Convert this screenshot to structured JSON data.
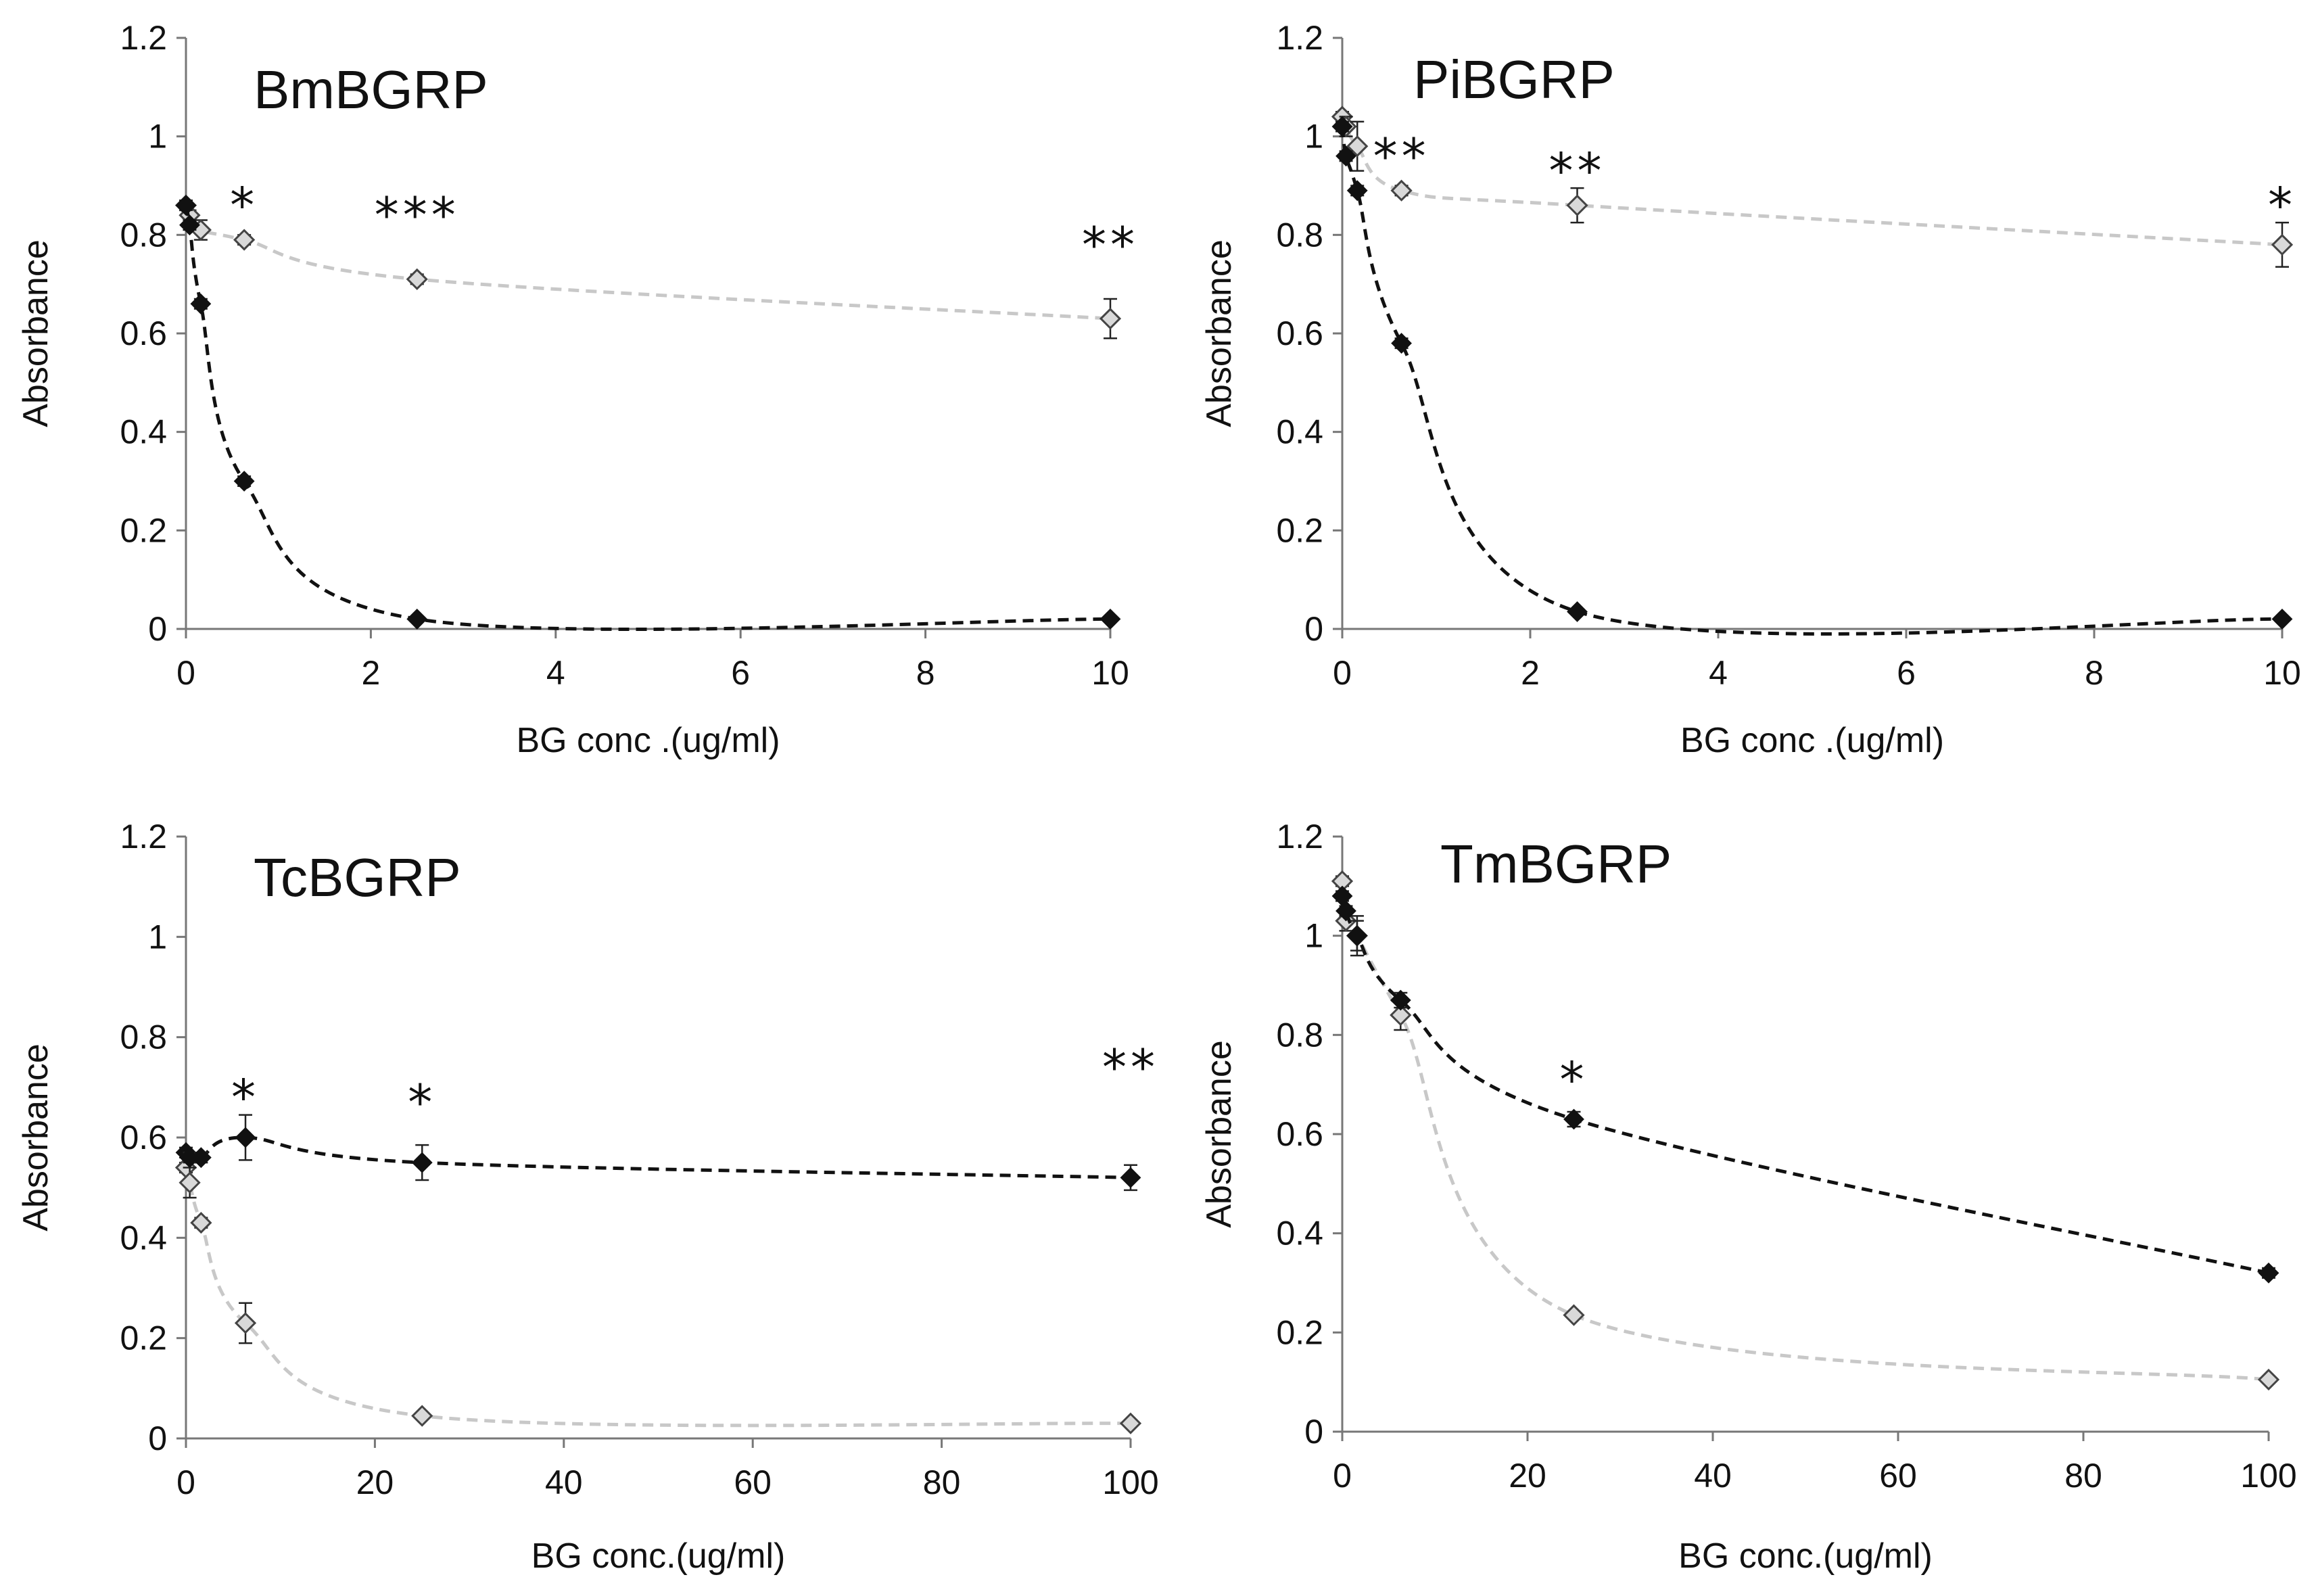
{
  "chart_data": [
    {
      "type": "line",
      "title": "BmBGRP",
      "xlabel": "BG conc .(ug/ml)",
      "ylabel": "Absorbance",
      "xlim": [
        0,
        10
      ],
      "ylim": [
        0,
        1.2
      ],
      "xticks": [
        "0",
        "2",
        "4",
        "6",
        "8",
        "10"
      ],
      "yticks": [
        "0",
        "0.2",
        "0.4",
        "0.6",
        "0.8",
        "1",
        "1.2"
      ],
      "grid": false,
      "legend": null,
      "series": [
        {
          "marker": "filled-diamond",
          "color": "#111111",
          "x": [
            0,
            0.04,
            0.16,
            0.63,
            2.5,
            10
          ],
          "y": [
            0.86,
            0.82,
            0.66,
            0.3,
            0.02,
            0.02
          ],
          "err": [
            0.01,
            0.01,
            0.01,
            0.01,
            0.005,
            0.005
          ]
        },
        {
          "marker": "open-diamond",
          "color": "#c8c8c8",
          "x": [
            0,
            0.04,
            0.16,
            0.63,
            2.5,
            10
          ],
          "y": [
            0.86,
            0.84,
            0.81,
            0.79,
            0.71,
            0.63
          ],
          "err": [
            0.01,
            0.01,
            0.02,
            0.01,
            0.01,
            0.04
          ]
        }
      ],
      "annotations": [
        {
          "x": 0.63,
          "y": 0.86,
          "text": "*"
        },
        {
          "x": 2.5,
          "y": 0.84,
          "text": "***"
        },
        {
          "x": 10,
          "y": 0.78,
          "text": "**"
        }
      ]
    },
    {
      "type": "line",
      "title": "PiBGRP",
      "xlabel": "BG conc .(ug/ml)",
      "ylabel": "Absorbance",
      "xlim": [
        0,
        10
      ],
      "ylim": [
        0,
        1.2
      ],
      "xticks": [
        "0",
        "2",
        "4",
        "6",
        "8",
        "10"
      ],
      "yticks": [
        "0",
        "0.2",
        "0.4",
        "0.6",
        "0.8",
        "1",
        "1.2"
      ],
      "grid": false,
      "legend": null,
      "series": [
        {
          "marker": "filled-diamond",
          "color": "#111111",
          "x": [
            0,
            0.04,
            0.16,
            0.63,
            2.5,
            10
          ],
          "y": [
            1.02,
            0.96,
            0.89,
            0.58,
            0.035,
            0.02
          ],
          "err": [
            0.01,
            0.01,
            0.01,
            0.01,
            0.005,
            0.005
          ]
        },
        {
          "marker": "open-diamond",
          "color": "#c8c8c8",
          "x": [
            0,
            0.04,
            0.16,
            0.63,
            2.5,
            10
          ],
          "y": [
            1.04,
            1.02,
            0.98,
            0.89,
            0.86,
            0.78
          ],
          "err": [
            0.01,
            0.02,
            0.05,
            0.01,
            0.035,
            0.045
          ]
        }
      ],
      "annotations": [
        {
          "x": 0.63,
          "y": 0.96,
          "text": "**"
        },
        {
          "x": 2.5,
          "y": 0.93,
          "text": "**"
        },
        {
          "x": 10,
          "y": 0.86,
          "text": "*"
        }
      ]
    },
    {
      "type": "line",
      "title": "TcBGRP",
      "xlabel": "BG conc.(ug/ml)",
      "ylabel": "Absorbance",
      "xlim": [
        0,
        100
      ],
      "ylim": [
        0,
        1.2
      ],
      "xticks": [
        "0",
        "20",
        "40",
        "60",
        "80",
        "100"
      ],
      "yticks": [
        "0",
        "0.2",
        "0.4",
        "0.6",
        "0.8",
        "1",
        "1.2"
      ],
      "grid": false,
      "legend": null,
      "series": [
        {
          "marker": "filled-diamond",
          "color": "#111111",
          "x": [
            0,
            0.4,
            1.6,
            6.3,
            25,
            100
          ],
          "y": [
            0.57,
            0.56,
            0.56,
            0.6,
            0.55,
            0.52
          ],
          "err": [
            0.01,
            0.01,
            0.01,
            0.045,
            0.035,
            0.025
          ]
        },
        {
          "marker": "open-diamond",
          "color": "#c8c8c8",
          "x": [
            0,
            0.4,
            1.6,
            6.3,
            25,
            100
          ],
          "y": [
            0.54,
            0.51,
            0.43,
            0.23,
            0.045,
            0.03
          ],
          "err": [
            0.01,
            0.03,
            0.01,
            0.04,
            0.005,
            0.005
          ]
        }
      ],
      "annotations": [
        {
          "x": 6.3,
          "y": 0.68,
          "text": "*"
        },
        {
          "x": 25,
          "y": 0.67,
          "text": "*"
        },
        {
          "x": 100,
          "y": 0.74,
          "text": "**"
        }
      ]
    },
    {
      "type": "line",
      "title": "TmBGRP",
      "xlabel": "BG conc.(ug/ml)",
      "ylabel": "Absorbance",
      "xlim": [
        0,
        100
      ],
      "ylim": [
        0,
        1.2
      ],
      "xticks": [
        "0",
        "20",
        "40",
        "60",
        "80",
        "100"
      ],
      "yticks": [
        "0",
        "0.2",
        "0.4",
        "0.6",
        "0.8",
        "1",
        "1.2"
      ],
      "grid": false,
      "legend": null,
      "series": [
        {
          "marker": "filled-diamond",
          "color": "#111111",
          "x": [
            0,
            0.4,
            1.6,
            6.3,
            25,
            100
          ],
          "y": [
            1.08,
            1.05,
            1.0,
            0.87,
            0.63,
            0.32
          ],
          "err": [
            0.01,
            0.01,
            0.03,
            0.015,
            0.015,
            0.01
          ]
        },
        {
          "marker": "open-diamond",
          "color": "#c8c8c8",
          "x": [
            0,
            0.4,
            1.6,
            6.3,
            25,
            100
          ],
          "y": [
            1.11,
            1.03,
            1.0,
            0.84,
            0.235,
            0.105
          ],
          "err": [
            0.01,
            0.02,
            0.04,
            0.03,
            0.005,
            0.005
          ]
        }
      ],
      "annotations": [
        {
          "x": 25,
          "y": 0.71,
          "text": "*"
        }
      ]
    }
  ]
}
